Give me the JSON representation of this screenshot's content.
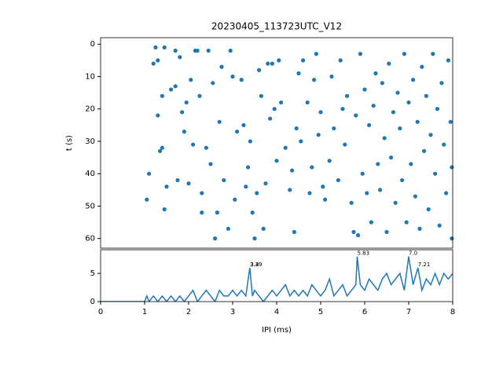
{
  "chart_data": [
    {
      "type": "scatter",
      "title": "20230405_113723UTC_V12",
      "ylabel": "t (s)",
      "xlim": [
        0,
        8
      ],
      "ylim": [
        -2,
        63
      ],
      "y_inverted": true,
      "yticks": [
        0,
        10,
        20,
        30,
        40,
        50,
        60
      ],
      "color": "#1f77b4",
      "x": [
        1.05,
        1.1,
        1.2,
        1.25,
        1.3,
        1.3,
        1.35,
        1.4,
        1.4,
        1.45,
        1.45,
        1.5,
        1.6,
        1.7,
        1.8,
        1.7,
        1.75,
        1.85,
        1.9,
        1.95,
        2.0,
        2.05,
        2.1,
        2.15,
        2.2,
        2.25,
        2.3,
        2.3,
        2.4,
        2.45,
        2.5,
        2.55,
        2.6,
        2.65,
        2.7,
        2.75,
        2.8,
        2.9,
        2.95,
        3.0,
        3.05,
        3.1,
        3.2,
        3.25,
        3.3,
        3.35,
        3.4,
        3.45,
        3.5,
        3.55,
        3.6,
        3.65,
        3.7,
        3.75,
        3.8,
        3.85,
        3.9,
        3.95,
        4.0,
        4.05,
        4.1,
        4.2,
        4.3,
        4.35,
        4.4,
        4.45,
        4.5,
        4.55,
        4.6,
        4.7,
        4.75,
        4.8,
        4.85,
        4.9,
        4.95,
        5.0,
        5.05,
        5.1,
        5.2,
        5.25,
        5.3,
        5.4,
        5.45,
        5.5,
        5.55,
        5.6,
        5.7,
        5.75,
        5.8,
        5.85,
        5.9,
        5.95,
        6.0,
        6.05,
        6.1,
        6.15,
        6.2,
        6.25,
        6.3,
        6.35,
        6.4,
        6.45,
        6.5,
        6.55,
        6.6,
        6.65,
        6.7,
        6.75,
        6.8,
        6.85,
        6.9,
        6.95,
        7.0,
        7.05,
        7.1,
        7.15,
        7.2,
        7.25,
        7.3,
        7.35,
        7.4,
        7.45,
        7.5,
        7.55,
        7.6,
        7.65,
        7.7,
        7.75,
        7.8,
        7.85,
        7.9,
        7.95,
        7.98,
        7.98
      ],
      "y": [
        48,
        40,
        6,
        1,
        22,
        5,
        33,
        32,
        16,
        1,
        51,
        44,
        14,
        13,
        4,
        2,
        42,
        21,
        27,
        18,
        43,
        11,
        31,
        2,
        2,
        16,
        52,
        46,
        32,
        2,
        37,
        12,
        60,
        52,
        24,
        7,
        42,
        57,
        2,
        10,
        48,
        27,
        11,
        25,
        44,
        38,
        30,
        52,
        60,
        46,
        8,
        16,
        57,
        43,
        6,
        23,
        6,
        20,
        36,
        5,
        18,
        32,
        45,
        39,
        58,
        26,
        9,
        30,
        5,
        18,
        46,
        38,
        11,
        3,
        28,
        21,
        44,
        48,
        36,
        10,
        26,
        42,
        5,
        20,
        31,
        16,
        49,
        58,
        22,
        59,
        3,
        40,
        14,
        46,
        25,
        55,
        19,
        9,
        37,
        45,
        12,
        29,
        58,
        6,
        35,
        21,
        49,
        15,
        26,
        42,
        3,
        55,
        18,
        37,
        11,
        47,
        24,
        57,
        7,
        33,
        16,
        51,
        28,
        3,
        40,
        20,
        56,
        12,
        31,
        46,
        5,
        24,
        38,
        60
      ]
    },
    {
      "type": "line",
      "xlabel": "IPI (ms)",
      "xlim": [
        0,
        8
      ],
      "xticks": [
        0,
        1,
        2,
        3,
        4,
        5,
        6,
        7,
        8
      ],
      "ylim": [
        0,
        9.2
      ],
      "yticks": [
        0,
        5
      ],
      "color": "#1f77b4",
      "x": [
        0,
        1.0,
        1.05,
        1.1,
        1.2,
        1.3,
        1.4,
        1.5,
        1.6,
        1.7,
        1.8,
        1.9,
        2.0,
        2.1,
        2.2,
        2.3,
        2.4,
        2.5,
        2.6,
        2.7,
        2.8,
        2.9,
        3.0,
        3.1,
        3.2,
        3.3,
        3.39,
        3.45,
        3.5,
        3.6,
        3.7,
        3.8,
        3.9,
        4.0,
        4.1,
        4.2,
        4.3,
        4.4,
        4.5,
        4.6,
        4.7,
        4.8,
        4.9,
        5.0,
        5.1,
        5.2,
        5.3,
        5.4,
        5.5,
        5.6,
        5.7,
        5.8,
        5.83,
        5.9,
        6.0,
        6.1,
        6.2,
        6.3,
        6.4,
        6.5,
        6.6,
        6.7,
        6.8,
        6.9,
        7.0,
        7.1,
        7.21,
        7.3,
        7.4,
        7.5,
        7.6,
        7.7,
        7.8,
        7.9,
        8.0
      ],
      "values": [
        0,
        0,
        1,
        0,
        1,
        0,
        1,
        0,
        1,
        0,
        1,
        0,
        1,
        2,
        0,
        1,
        2,
        1,
        0,
        2,
        1,
        1,
        2,
        1,
        2,
        1,
        6,
        1,
        2,
        1,
        0,
        1,
        2,
        1,
        2,
        3,
        1,
        2,
        1,
        2,
        1,
        3,
        2,
        1,
        2,
        4,
        1,
        2,
        3,
        1,
        2,
        3,
        8,
        3,
        2,
        4,
        3,
        2,
        4,
        5,
        3,
        4,
        5,
        2,
        8,
        3,
        6,
        2,
        4,
        3,
        5,
        3,
        5,
        4,
        5
      ],
      "annotations": [
        {
          "x": 3.39,
          "y": 6,
          "text": "3.39"
        },
        {
          "x": 3.4,
          "y": 6,
          "text": "3.4"
        },
        {
          "x": 5.83,
          "y": 8,
          "text": "5.83"
        },
        {
          "x": 7.0,
          "y": 8,
          "text": "7.0"
        },
        {
          "x": 7.21,
          "y": 6,
          "text": "7.21"
        }
      ]
    }
  ]
}
